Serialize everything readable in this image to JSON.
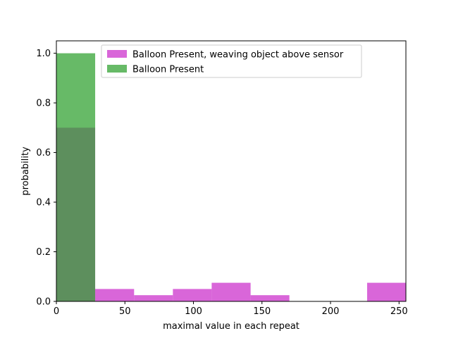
{
  "chart_data": {
    "type": "bar",
    "subtype": "histogram-overlay",
    "title": "",
    "xlabel": "maximal value in each repeat",
    "ylabel": "probability",
    "xlim": [
      0,
      255
    ],
    "ylim": [
      0,
      1.05
    ],
    "xticks": [
      0,
      50,
      100,
      150,
      200,
      250
    ],
    "yticks": [
      0.0,
      0.2,
      0.4,
      0.6,
      0.8,
      1.0
    ],
    "xtick_labels": [
      "0",
      "50",
      "100",
      "150",
      "200",
      "250"
    ],
    "ytick_labels": [
      "0.0",
      "0.2",
      "0.4",
      "0.6",
      "0.8",
      "1.0"
    ],
    "grid": false,
    "legend_position": "top-center",
    "bin_edges": [
      0,
      28.3,
      56.7,
      85,
      113.3,
      141.7,
      170,
      198.3,
      226.7,
      255
    ],
    "series": [
      {
        "name": "Balloon Present, weaving object above sensor",
        "color": "#cc33cc",
        "alpha": 0.75,
        "values": [
          0.7,
          0.05,
          0.025,
          0.05,
          0.075,
          0.025,
          0.0,
          0.0,
          0.075
        ]
      },
      {
        "name": "Balloon Present",
        "color": "#2ca02c",
        "alpha": 0.72,
        "values": [
          1.0,
          0.0,
          0.0,
          0.0,
          0.0,
          0.0,
          0.0,
          0.0,
          0.0
        ]
      }
    ]
  }
}
